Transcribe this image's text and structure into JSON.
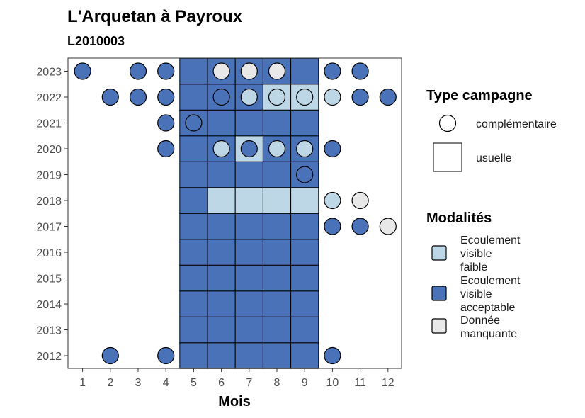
{
  "chart_data": {
    "type": "heatmap",
    "title": "L'Arquetan à Payroux",
    "subtitle": "L2010003",
    "xlabel": "Mois",
    "ylabel": "",
    "x_ticks": [
      "1",
      "2",
      "3",
      "4",
      "5",
      "6",
      "7",
      "8",
      "9",
      "10",
      "11",
      "12"
    ],
    "y_ticks": [
      "2012",
      "2013",
      "2014",
      "2015",
      "2016",
      "2017",
      "2018",
      "2019",
      "2020",
      "2021",
      "2022",
      "2023"
    ],
    "grid": false,
    "colors": {
      "faible": "#bdd7e7",
      "acceptable": "#4a72b8",
      "manquante": "#e8e8e8"
    },
    "legend_type": {
      "title": "Type campagne",
      "items": [
        {
          "label": "complémentaire",
          "shape": "circle"
        },
        {
          "label": "usuelle",
          "shape": "square"
        }
      ]
    },
    "legend_modalites": {
      "title": "Modalités",
      "items": [
        {
          "key": "faible",
          "label_lines": [
            "Ecoulement",
            "visible",
            "faible"
          ]
        },
        {
          "key": "acceptable",
          "label_lines": [
            "Ecoulement",
            "visible",
            "acceptable"
          ]
        },
        {
          "key": "manquante",
          "label_lines": [
            "Donnée",
            "manquante"
          ]
        }
      ]
    },
    "usuelle": [
      {
        "year": 2012,
        "months": [
          "acceptable",
          "acceptable",
          "acceptable",
          "acceptable",
          "acceptable"
        ]
      },
      {
        "year": 2013,
        "months": [
          "acceptable",
          "acceptable",
          "acceptable",
          "acceptable",
          "acceptable"
        ]
      },
      {
        "year": 2014,
        "months": [
          "acceptable",
          "acceptable",
          "acceptable",
          "acceptable",
          "acceptable"
        ]
      },
      {
        "year": 2015,
        "months": [
          "acceptable",
          "acceptable",
          "acceptable",
          "acceptable",
          "acceptable"
        ]
      },
      {
        "year": 2016,
        "months": [
          "acceptable",
          "acceptable",
          "acceptable",
          "acceptable",
          "acceptable"
        ]
      },
      {
        "year": 2017,
        "months": [
          "acceptable",
          "acceptable",
          "acceptable",
          "acceptable",
          "acceptable"
        ]
      },
      {
        "year": 2018,
        "months": [
          "acceptable",
          "faible",
          "faible",
          "faible",
          "faible"
        ]
      },
      {
        "year": 2019,
        "months": [
          "acceptable",
          "acceptable",
          "acceptable",
          "acceptable",
          "acceptable"
        ]
      },
      {
        "year": 2020,
        "months": [
          "acceptable",
          "acceptable",
          "faible",
          "acceptable",
          "acceptable"
        ]
      },
      {
        "year": 2021,
        "months": [
          "acceptable",
          "acceptable",
          "acceptable",
          "acceptable",
          "acceptable"
        ]
      },
      {
        "year": 2022,
        "months": [
          "acceptable",
          "acceptable",
          "acceptable",
          "faible",
          "faible"
        ]
      },
      {
        "year": 2023,
        "months": [
          "acceptable",
          "acceptable",
          "acceptable",
          "acceptable",
          "acceptable"
        ]
      }
    ],
    "usuelle_months": [
      5,
      6,
      7,
      8,
      9
    ],
    "complementaire": [
      {
        "year": 2023,
        "month": 1,
        "mod": "acceptable"
      },
      {
        "year": 2023,
        "month": 3,
        "mod": "acceptable"
      },
      {
        "year": 2023,
        "month": 4,
        "mod": "acceptable"
      },
      {
        "year": 2023,
        "month": 6,
        "mod": "manquante"
      },
      {
        "year": 2023,
        "month": 7,
        "mod": "manquante"
      },
      {
        "year": 2023,
        "month": 8,
        "mod": "manquante"
      },
      {
        "year": 2023,
        "month": 10,
        "mod": "acceptable"
      },
      {
        "year": 2023,
        "month": 11,
        "mod": "acceptable"
      },
      {
        "year": 2022,
        "month": 2,
        "mod": "acceptable"
      },
      {
        "year": 2022,
        "month": 3,
        "mod": "acceptable"
      },
      {
        "year": 2022,
        "month": 4,
        "mod": "acceptable"
      },
      {
        "year": 2022,
        "month": 6,
        "mod": "acceptable"
      },
      {
        "year": 2022,
        "month": 7,
        "mod": "faible"
      },
      {
        "year": 2022,
        "month": 8,
        "mod": "faible"
      },
      {
        "year": 2022,
        "month": 9,
        "mod": "faible"
      },
      {
        "year": 2022,
        "month": 10,
        "mod": "faible"
      },
      {
        "year": 2022,
        "month": 11,
        "mod": "acceptable"
      },
      {
        "year": 2022,
        "month": 12,
        "mod": "acceptable"
      },
      {
        "year": 2021,
        "month": 4,
        "mod": "acceptable"
      },
      {
        "year": 2021,
        "month": 5,
        "mod": "acceptable"
      },
      {
        "year": 2020,
        "month": 4,
        "mod": "acceptable"
      },
      {
        "year": 2020,
        "month": 6,
        "mod": "faible"
      },
      {
        "year": 2020,
        "month": 7,
        "mod": "acceptable"
      },
      {
        "year": 2020,
        "month": 8,
        "mod": "faible"
      },
      {
        "year": 2020,
        "month": 9,
        "mod": "faible"
      },
      {
        "year": 2020,
        "month": 10,
        "mod": "acceptable"
      },
      {
        "year": 2019,
        "month": 9,
        "mod": "acceptable"
      },
      {
        "year": 2018,
        "month": 10,
        "mod": "faible"
      },
      {
        "year": 2018,
        "month": 11,
        "mod": "manquante"
      },
      {
        "year": 2017,
        "month": 10,
        "mod": "acceptable"
      },
      {
        "year": 2017,
        "month": 11,
        "mod": "acceptable"
      },
      {
        "year": 2017,
        "month": 12,
        "mod": "manquante"
      },
      {
        "year": 2012,
        "month": 2,
        "mod": "acceptable"
      },
      {
        "year": 2012,
        "month": 4,
        "mod": "acceptable"
      },
      {
        "year": 2012,
        "month": 10,
        "mod": "acceptable"
      }
    ]
  }
}
